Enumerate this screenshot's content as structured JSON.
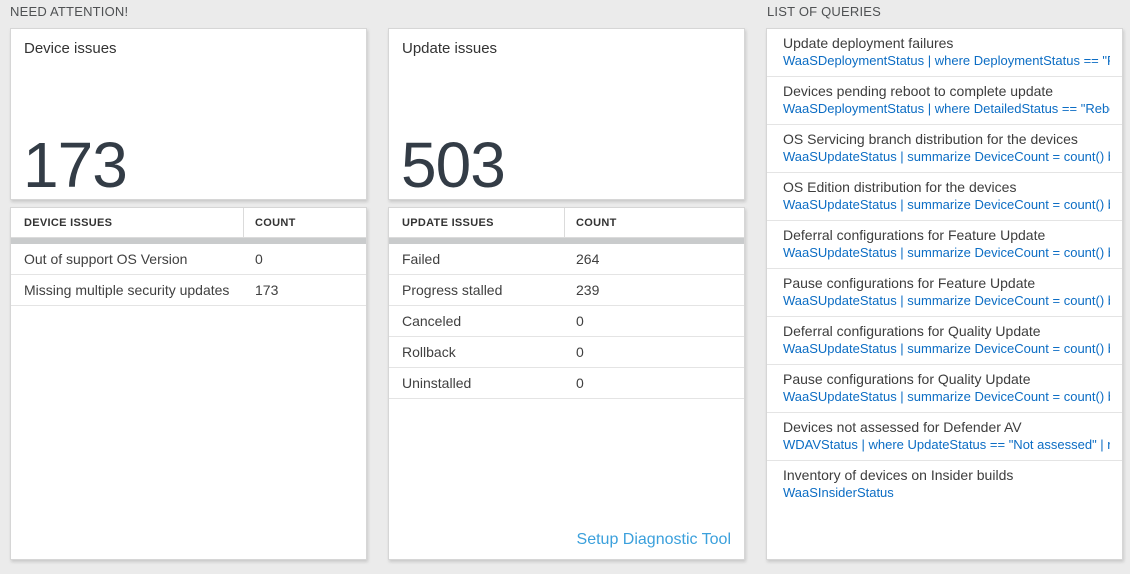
{
  "sections": {
    "need_attention": "NEED ATTENTION!",
    "list_of_queries": "LIST OF QUERIES"
  },
  "device_card": {
    "title": "Device issues",
    "value": "173"
  },
  "update_card": {
    "title": "Update issues",
    "value": "503"
  },
  "device_table": {
    "headers": [
      "DEVICE ISSUES",
      "COUNT"
    ],
    "rows": [
      {
        "label": "Out of support OS Version",
        "count": "0"
      },
      {
        "label": "Missing multiple security updates",
        "count": "173"
      }
    ]
  },
  "update_table": {
    "headers": [
      "UPDATE ISSUES",
      "COUNT"
    ],
    "rows": [
      {
        "label": "Failed",
        "count": "264"
      },
      {
        "label": "Progress stalled",
        "count": "239"
      },
      {
        "label": "Canceled",
        "count": "0"
      },
      {
        "label": "Rollback",
        "count": "0"
      },
      {
        "label": "Uninstalled",
        "count": "0"
      }
    ],
    "link_label": "Setup Diagnostic Tool"
  },
  "queries": [
    {
      "title": "Update deployment failures",
      "query": "WaaSDeploymentStatus | where DeploymentStatus == \"Failed\" |..."
    },
    {
      "title": "Devices pending reboot to complete update",
      "query": "WaaSDeploymentStatus | where DetailedStatus == \"Reboot pend..."
    },
    {
      "title": "OS Servicing branch distribution for the devices",
      "query": "WaaSUpdateStatus | summarize DeviceCount = count() by OSSer..."
    },
    {
      "title": "OS Edition distribution for the devices",
      "query": "WaaSUpdateStatus | summarize DeviceCount = count() by OSEdit..."
    },
    {
      "title": "Deferral configurations for Feature Update",
      "query": "WaaSUpdateStatus | summarize DeviceCount = count() by Featur..."
    },
    {
      "title": "Pause configurations for Feature Update",
      "query": "WaaSUpdateStatus | summarize DeviceCount = count() by Featur..."
    },
    {
      "title": "Deferral configurations for Quality Update",
      "query": "WaaSUpdateStatus | summarize DeviceCount = count() by Qualit..."
    },
    {
      "title": "Pause configurations for Quality Update",
      "query": "WaaSUpdateStatus | summarize DeviceCount = count() by Qualit..."
    },
    {
      "title": "Devices not assessed for Defender AV",
      "query": "WDAVStatus | where UpdateStatus == \"Not assessed\" | render ta..."
    },
    {
      "title": "Inventory of devices on Insider builds",
      "query": "WaaSInsiderStatus"
    }
  ],
  "colors": {
    "query_link": "#0c6dc4",
    "action_link": "#3ba0dc",
    "metric_number": "#333c46",
    "header_separator_bar": "#c9cbcc",
    "page_background": "#ebebeb"
  }
}
